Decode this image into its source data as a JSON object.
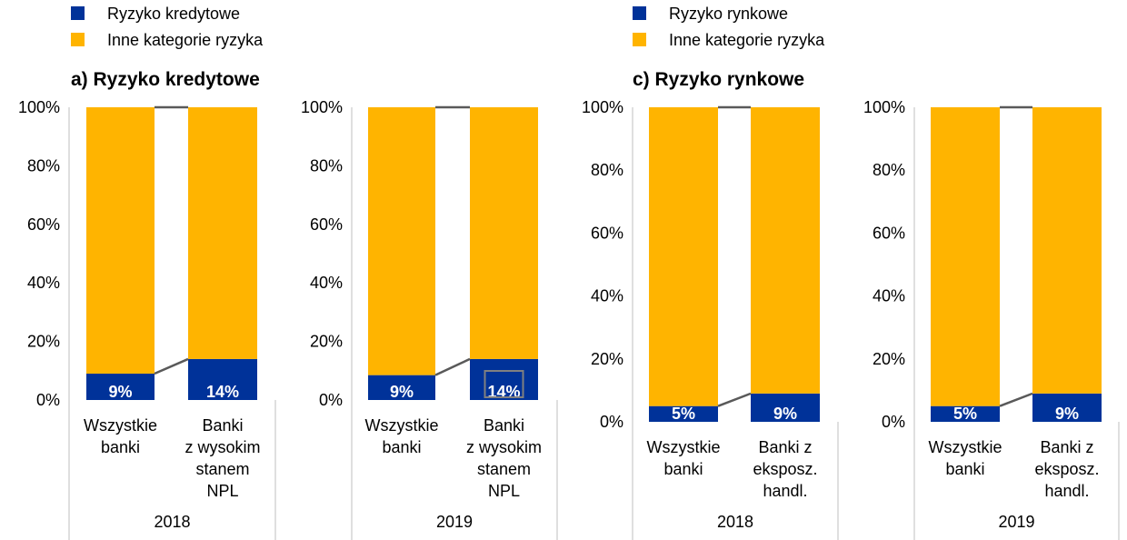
{
  "colors": {
    "primary": "#003299",
    "other": "#FFB400",
    "connector": "#595959",
    "axis": "#BFBFBF"
  },
  "legend_left": {
    "items": [
      {
        "label": "Ryzyko kredytowe",
        "color": "#003299"
      },
      {
        "label": "Inne kategorie ryzyka",
        "color": "#FFB400"
      }
    ]
  },
  "legend_right": {
    "items": [
      {
        "label": "Ryzyko rynkowe",
        "color": "#003299"
      },
      {
        "label": "Inne kategorie ryzyka",
        "color": "#FFB400"
      }
    ]
  },
  "titles": {
    "left": "a) Ryzyko kredytowe",
    "right": "c) Ryzyko rynkowe"
  },
  "chart_data": [
    {
      "type": "bar",
      "stacked": true,
      "group": "2018",
      "categories": [
        "Wszystkie\nbanki",
        "Banki\nz wysokim\nstanem\nNPL"
      ],
      "series": [
        {
          "name": "Ryzyko kredytowe",
          "values": [
            9,
            14
          ],
          "labels": [
            "9%",
            "14%"
          ]
        },
        {
          "name": "Inne kategorie ryzyka",
          "values": [
            91,
            86
          ]
        }
      ],
      "yticks": [
        "0%",
        "20%",
        "40%",
        "60%",
        "80%",
        "100%"
      ],
      "ylim": [
        0,
        100
      ],
      "highlight_label": null
    },
    {
      "type": "bar",
      "stacked": true,
      "group": "2019",
      "categories": [
        "Wszystkie\nbanki",
        "Banki\nz wysokim\nstanem\nNPL"
      ],
      "series": [
        {
          "name": "Ryzyko kredytowe",
          "values": [
            8.5,
            14
          ],
          "labels": [
            "9%",
            "14%"
          ]
        },
        {
          "name": "Inne kategorie ryzyka",
          "values": [
            91.5,
            86
          ]
        }
      ],
      "yticks": [
        "0%",
        "20%",
        "40%",
        "60%",
        "80%",
        "100%"
      ],
      "ylim": [
        0,
        100
      ],
      "highlight_label": 1
    },
    {
      "type": "bar",
      "stacked": true,
      "group": "2018",
      "categories": [
        "Wszystkie\nbanki",
        "Banki z\neksposz.\nhandl."
      ],
      "series": [
        {
          "name": "Ryzyko rynkowe",
          "values": [
            5,
            9
          ],
          "labels": [
            "5%",
            "9%"
          ]
        },
        {
          "name": "Inne kategorie ryzyka",
          "values": [
            95,
            91
          ]
        }
      ],
      "yticks": [
        "0%",
        "20%",
        "40%",
        "60%",
        "80%",
        "100%"
      ],
      "ylim": [
        0,
        100
      ],
      "highlight_label": null
    },
    {
      "type": "bar",
      "stacked": true,
      "group": "2019",
      "categories": [
        "Wszystkie\nbanki",
        "Banki z\neksposz.\nhandl."
      ],
      "series": [
        {
          "name": "Ryzyko rynkowe",
          "values": [
            5,
            9
          ],
          "labels": [
            "5%",
            "9%"
          ]
        },
        {
          "name": "Inne kategorie ryzyka",
          "values": [
            95,
            91
          ]
        }
      ],
      "yticks": [
        "0%",
        "20%",
        "40%",
        "60%",
        "80%",
        "100%"
      ],
      "ylim": [
        0,
        100
      ],
      "highlight_label": null
    }
  ]
}
